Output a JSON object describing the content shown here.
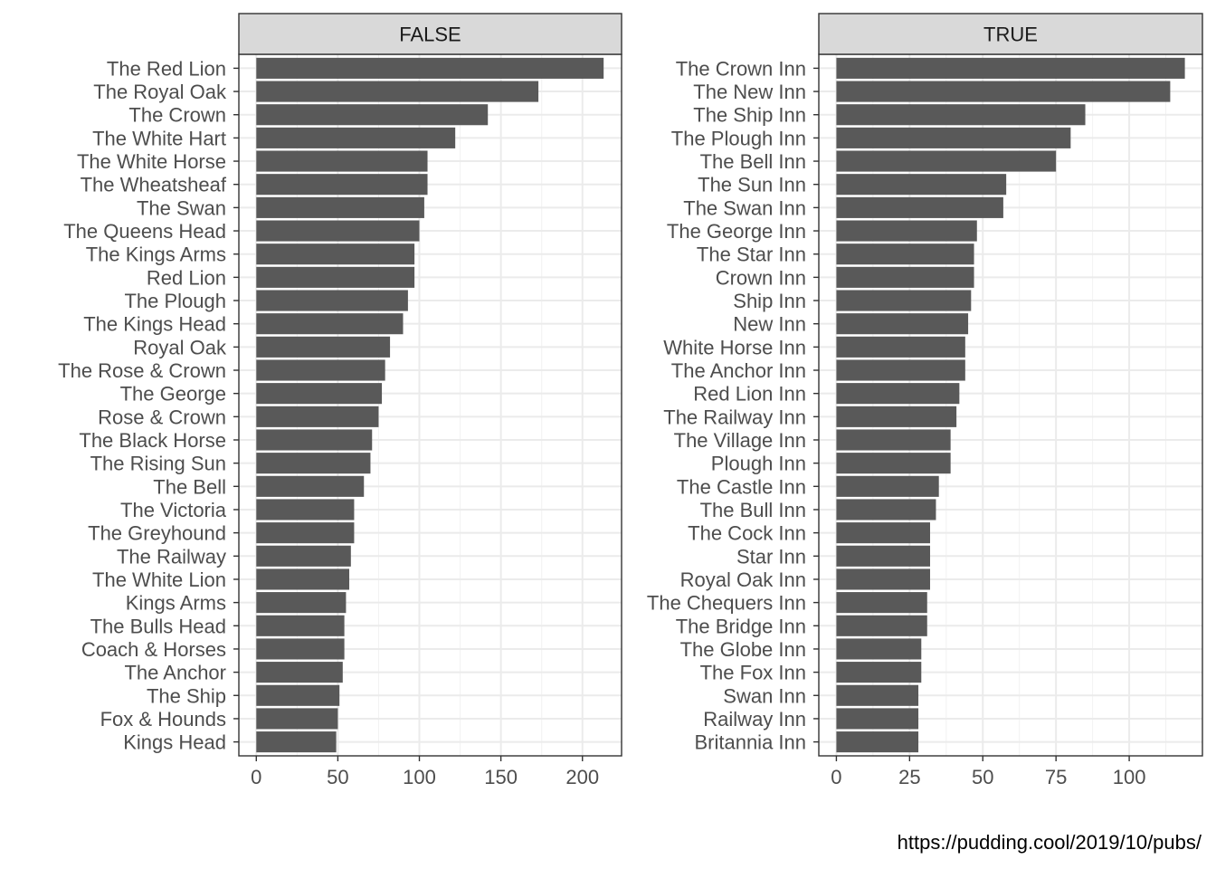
{
  "chart_data": {
    "type": "bar",
    "orientation": "horizontal",
    "facets": [
      {
        "strip_label": "FALSE",
        "categories": [
          "The Red Lion",
          "The Royal Oak",
          "The Crown",
          "The White Hart",
          "The White Horse",
          "The Wheatsheaf",
          "The Swan",
          "The Queens Head",
          "The Kings Arms",
          "Red Lion",
          "The Plough",
          "The Kings Head",
          "Royal Oak",
          "The Rose & Crown",
          "The George",
          "Rose & Crown",
          "The Black Horse",
          "The Rising Sun",
          "The Bell",
          "The Victoria",
          "The Greyhound",
          "The Railway",
          "The White Lion",
          "Kings Arms",
          "The Bulls Head",
          "Coach & Horses",
          "The Anchor",
          "The Ship",
          "Fox & Hounds",
          "Kings Head"
        ],
        "values": [
          213,
          173,
          142,
          122,
          105,
          105,
          103,
          100,
          97,
          97,
          93,
          90,
          82,
          79,
          77,
          75,
          71,
          70,
          66,
          60,
          60,
          58,
          57,
          55,
          54,
          54,
          53,
          51,
          50,
          49
        ],
        "xlim": [
          -10.7,
          224
        ],
        "xticks": [
          0,
          50,
          100,
          150,
          200
        ]
      },
      {
        "strip_label": "TRUE",
        "categories": [
          "The Crown Inn",
          "The New Inn",
          "The Ship Inn",
          "The Plough Inn",
          "The Bell Inn",
          "The Sun Inn",
          "The Swan Inn",
          "The George Inn",
          "The Star Inn",
          "Crown Inn",
          "Ship Inn",
          "New Inn",
          "White Horse Inn",
          "The Anchor Inn",
          "Red Lion Inn",
          "The Railway Inn",
          "The Village Inn",
          "Plough Inn",
          "The Castle Inn",
          "The Bull Inn",
          "The Cock Inn",
          "Star Inn",
          "Royal Oak Inn",
          "The Chequers Inn",
          "The Bridge Inn",
          "The Globe Inn",
          "The Fox Inn",
          "Swan Inn",
          "Railway Inn",
          "Britannia Inn"
        ],
        "values": [
          119,
          114,
          85,
          80,
          75,
          58,
          57,
          48,
          47,
          47,
          46,
          45,
          44,
          44,
          42,
          41,
          39,
          39,
          35,
          34,
          32,
          32,
          32,
          31,
          31,
          29,
          29,
          28,
          28,
          28
        ],
        "xlim": [
          -6,
          125
        ],
        "xticks": [
          0,
          25,
          50,
          75,
          100
        ]
      }
    ],
    "grid": true,
    "bar_color": "#595959",
    "strip_fill": "#d9d9d9",
    "caption": "https://pudding.cool/2019/10/pubs/"
  }
}
